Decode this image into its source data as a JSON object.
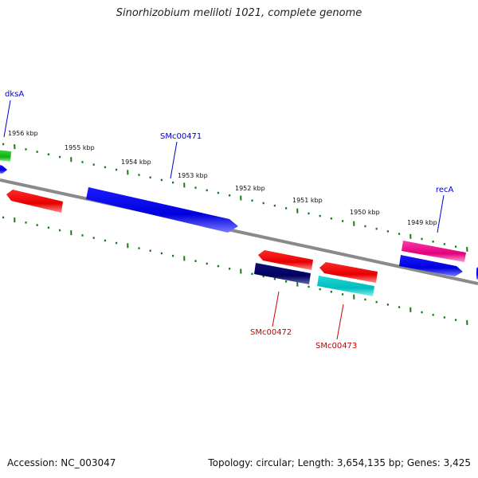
{
  "title": "Sinorhizobium meliloti 1021, complete genome",
  "footer": {
    "accession": "Accession: NC_003047",
    "stats": "Topology: circular; Length: 3,654,135 bp; Genes: 3,425"
  },
  "colors": {
    "backbone": "#8a8a8a",
    "ticks": "#1a7a1a",
    "forward_label": "#0000cc",
    "reverse_label": "#cc0000"
  },
  "scale_ticks": [
    "1956 kbp",
    "1955 kbp",
    "1954 kbp",
    "1953 kbp",
    "1952 kbp",
    "1951 kbp",
    "1950 kbp",
    "1949 kbp"
  ],
  "labels": {
    "dksA": "dksA",
    "SMc00471": "SMc00471",
    "recA": "recA",
    "SMc00472": "SMc00472",
    "SMc00473": "SMc00473"
  }
}
